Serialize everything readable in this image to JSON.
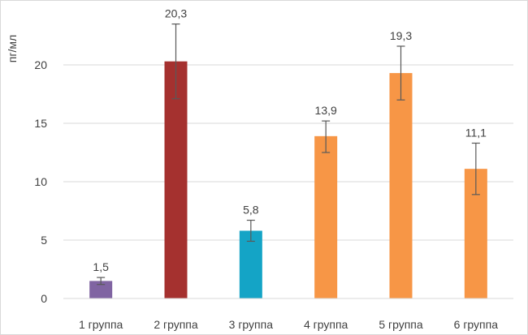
{
  "chart_data": {
    "type": "bar",
    "ylabel": "пг/мл",
    "xlabel": "",
    "title": "",
    "ylim": [
      0,
      25
    ],
    "yticks": [
      0,
      5,
      10,
      15,
      20
    ],
    "grid": true,
    "categories": [
      "1 группа",
      "2 группа",
      "3 группа",
      "4 группа",
      "5 группа",
      "6 группа"
    ],
    "values": [
      1.5,
      20.3,
      5.8,
      13.9,
      19.3,
      11.1
    ],
    "data_labels": [
      "1,5",
      "20,3",
      "5,8",
      "13,9",
      "19,3",
      "11,1"
    ],
    "error_low": [
      1.2,
      17.1,
      4.9,
      12.5,
      17.0,
      8.9
    ],
    "error_high": [
      1.8,
      23.5,
      6.7,
      15.2,
      21.6,
      13.3
    ],
    "colors": [
      "#8064a2",
      "#a5312f",
      "#14a4c6",
      "#f79646",
      "#f79646",
      "#f79646"
    ]
  }
}
